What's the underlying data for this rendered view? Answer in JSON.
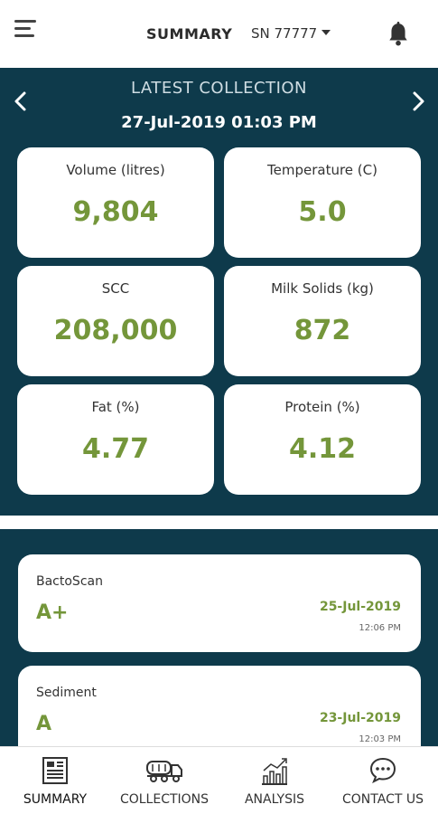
{
  "header": {
    "title": "SUMMARY",
    "serial": "SN 77777"
  },
  "latest": {
    "label": "LATEST COLLECTION",
    "datetime": "27-Jul-2019 01:03 PM",
    "cards": [
      {
        "label": "Volume (litres)",
        "value": "9,804"
      },
      {
        "label": "Temperature (C)",
        "value": "5.0"
      },
      {
        "label": "SCC",
        "value": "208,000"
      },
      {
        "label": "Milk Solids (kg)",
        "value": "872"
      },
      {
        "label": "Fat (%)",
        "value": "4.77"
      },
      {
        "label": "Protein (%)",
        "value": "4.12"
      }
    ]
  },
  "results": [
    {
      "name": "BactoScan",
      "grade": "A+",
      "date": "25-Jul-2019",
      "time": "12:06 PM"
    },
    {
      "name": "Sediment",
      "grade": "A",
      "date": "23-Jul-2019",
      "time": "12:03 PM"
    }
  ],
  "nav": [
    {
      "label": "SUMMARY",
      "icon": "summary-icon"
    },
    {
      "label": "COLLECTIONS",
      "icon": "tanker-truck-icon"
    },
    {
      "label": "ANALYSIS",
      "icon": "chart-icon"
    },
    {
      "label": "CONTACT US",
      "icon": "chat-icon"
    }
  ],
  "colors": {
    "panel": "#0e3a4b",
    "accent": "#74963a"
  }
}
